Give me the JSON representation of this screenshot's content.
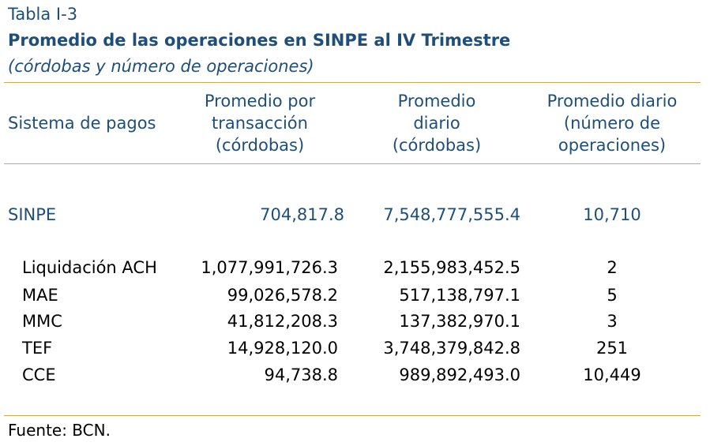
{
  "table_label": "Tabla I-3",
  "title": "Promedio de las operaciones en SINPE al IV Trimestre",
  "subtitle": "(córdobas y número de operaciones)",
  "headers": [
    {
      "lines": [
        "Sistema de pagos"
      ]
    },
    {
      "lines": [
        "Promedio por",
        "transacción",
        "(córdobas)"
      ]
    },
    {
      "lines": [
        "Promedio",
        "diario",
        "(córdobas)"
      ]
    },
    {
      "lines": [
        "Promedio diario",
        "(número de",
        "operaciones)"
      ]
    }
  ],
  "total_row": {
    "name": "SINPE",
    "avg_per_transaction": "704,817.8",
    "daily_avg": "7,548,777,555.4",
    "daily_ops": "10,710"
  },
  "rows": [
    {
      "name": "Liquidación ACH",
      "avg_per_transaction": "1,077,991,726.3",
      "daily_avg": "2,155,983,452.5",
      "daily_ops": "2"
    },
    {
      "name": "MAE",
      "avg_per_transaction": "99,026,578.2",
      "daily_avg": "517,138,797.1",
      "daily_ops": "5"
    },
    {
      "name": "MMC",
      "avg_per_transaction": "41,812,208.3",
      "daily_avg": "137,382,970.1",
      "daily_ops": "3"
    },
    {
      "name": "TEF",
      "avg_per_transaction": "14,928,120.0",
      "daily_avg": "3,748,379,842.8",
      "daily_ops": "251"
    },
    {
      "name": "CCE",
      "avg_per_transaction": "94,738.8",
      "daily_avg": "989,892,493.0",
      "daily_ops": "10,449"
    }
  ],
  "source": "Fuente: BCN.",
  "colors": {
    "heading_blue": "#1f4e79",
    "rule_gold": "#d4a84e",
    "body_text": "#000000"
  }
}
